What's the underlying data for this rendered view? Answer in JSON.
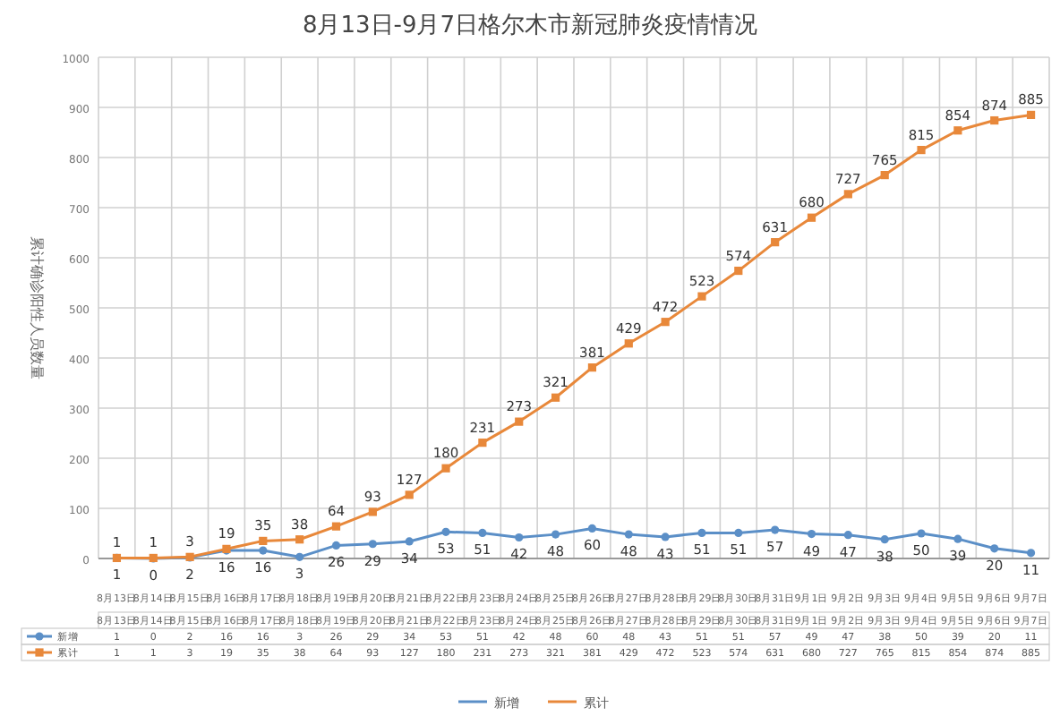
{
  "chart_data": {
    "type": "line",
    "title": "8月13日-9月7日格尔木市新冠肺炎疫情情况",
    "ylabel": "累计确诊阳性人员数量",
    "categories": [
      "8月13日",
      "8月14日",
      "8月15日",
      "8月16日",
      "8月17日",
      "8月18日",
      "8月19日",
      "8月20日",
      "8月21日",
      "8月22日",
      "8月23日",
      "8月24日",
      "8月25日",
      "8月26日",
      "8月27日",
      "8月28日",
      "8月29日",
      "8月30日",
      "8月31日",
      "9月1日",
      "9月2日",
      "9月3日",
      "9月4日",
      "9月5日",
      "9月6日",
      "9月7日"
    ],
    "series": [
      {
        "name": "新增",
        "color": "#5b8fc7",
        "marker": "circle",
        "values": [
          1,
          0,
          2,
          16,
          16,
          3,
          26,
          29,
          34,
          53,
          51,
          42,
          48,
          60,
          48,
          43,
          51,
          51,
          57,
          49,
          47,
          38,
          50,
          39,
          20,
          11
        ]
      },
      {
        "name": "累计",
        "color": "#e8883a",
        "marker": "square",
        "values": [
          1,
          1,
          3,
          19,
          35,
          38,
          64,
          93,
          127,
          180,
          231,
          273,
          321,
          381,
          429,
          472,
          523,
          574,
          631,
          680,
          727,
          765,
          815,
          854,
          874,
          885
        ]
      }
    ],
    "ylim": [
      0,
      1000
    ],
    "yticks": [
      0,
      100,
      200,
      300,
      400,
      500,
      600,
      700,
      800,
      900,
      1000
    ],
    "grid": true,
    "data_labels": true,
    "legend": "bottom",
    "annotations": [
      {
        "text": "1",
        "x": "8月13日",
        "y": 1
      },
      {
        "text": "0",
        "x": "8月14日",
        "y": 0
      },
      {
        "text": "2",
        "x": "8月15日",
        "y": 2
      },
      {
        "text": "16",
        "x": "8月16日",
        "y": 16
      },
      {
        "text": "16",
        "x": "8月17日",
        "y": 16
      },
      {
        "text": "3",
        "x": "8月18日",
        "y": 3
      },
      {
        "text": "26",
        "x": "8月19日",
        "y": 26
      },
      {
        "text": "29",
        "x": "8月20日",
        "y": 29
      },
      {
        "text": "34",
        "x": "8月21日",
        "y": 34
      },
      {
        "text": "53",
        "x": "8月22日",
        "y": 53
      },
      {
        "text": "51",
        "x": "8月23日",
        "y": 51
      },
      {
        "text": "42",
        "x": "8月24日",
        "y": 42
      },
      {
        "text": "48",
        "x": "8月25日",
        "y": 48
      },
      {
        "text": "60",
        "x": "8月26日",
        "y": 60
      },
      {
        "text": "48",
        "x": "8月27日",
        "y": 48
      },
      {
        "text": "43",
        "x": "8月28日",
        "y": 43
      },
      {
        "text": "51",
        "x": "8月29日",
        "y": 51
      },
      {
        "text": "51",
        "x": "8月30日",
        "y": 51
      },
      {
        "text": "57",
        "x": "8月31日",
        "y": 57
      },
      {
        "text": "49",
        "x": "9月1日",
        "y": 49
      },
      {
        "text": "47",
        "x": "9月2日",
        "y": 47
      },
      {
        "text": "38",
        "x": "9月3日",
        "y": 38
      },
      {
        "text": "50",
        "x": "9月4日",
        "y": 50
      },
      {
        "text": "39",
        "x": "9月5日",
        "y": 39
      },
      {
        "text": "20",
        "x": "9月6日",
        "y": 20
      },
      {
        "text": "11",
        "x": "9月7日",
        "y": 11
      },
      {
        "text": "1",
        "x": "8月13日",
        "y": 1
      },
      {
        "text": "1",
        "x": "8月14日",
        "y": 1
      },
      {
        "text": "3",
        "x": "8月15日",
        "y": 3
      },
      {
        "text": "19",
        "x": "8月16日",
        "y": 19
      },
      {
        "text": "35",
        "x": "8月17日",
        "y": 35
      },
      {
        "text": "38",
        "x": "8月18日",
        "y": 38
      },
      {
        "text": "64",
        "x": "8月19日",
        "y": 64
      },
      {
        "text": "93",
        "x": "8月20日",
        "y": 93
      },
      {
        "text": "127",
        "x": "8月21日",
        "y": 127
      },
      {
        "text": "180",
        "x": "8月22日",
        "y": 180
      },
      {
        "text": "231",
        "x": "8月23日",
        "y": 231
      },
      {
        "text": "273",
        "x": "8月24日",
        "y": 273
      },
      {
        "text": "321",
        "x": "8月25日",
        "y": 321
      },
      {
        "text": "381",
        "x": "8月26日",
        "y": 381
      },
      {
        "text": "429",
        "x": "8月27日",
        "y": 429
      },
      {
        "text": "472",
        "x": "8月28日",
        "y": 472
      },
      {
        "text": "523",
        "x": "8月29日",
        "y": 523
      },
      {
        "text": "574",
        "x": "8月30日",
        "y": 574
      },
      {
        "text": "631",
        "x": "8月31日",
        "y": 631
      },
      {
        "text": "680",
        "x": "9月1日",
        "y": 680
      },
      {
        "text": "727",
        "x": "9月2日",
        "y": 727
      },
      {
        "text": "765",
        "x": "9月3日",
        "y": 765
      },
      {
        "text": "815",
        "x": "9月4日",
        "y": 815
      },
      {
        "text": "854",
        "x": "9月5日",
        "y": 854
      },
      {
        "text": "874",
        "x": "9月6日",
        "y": 874
      },
      {
        "text": "885",
        "x": "9月7日",
        "y": 885
      }
    ]
  }
}
